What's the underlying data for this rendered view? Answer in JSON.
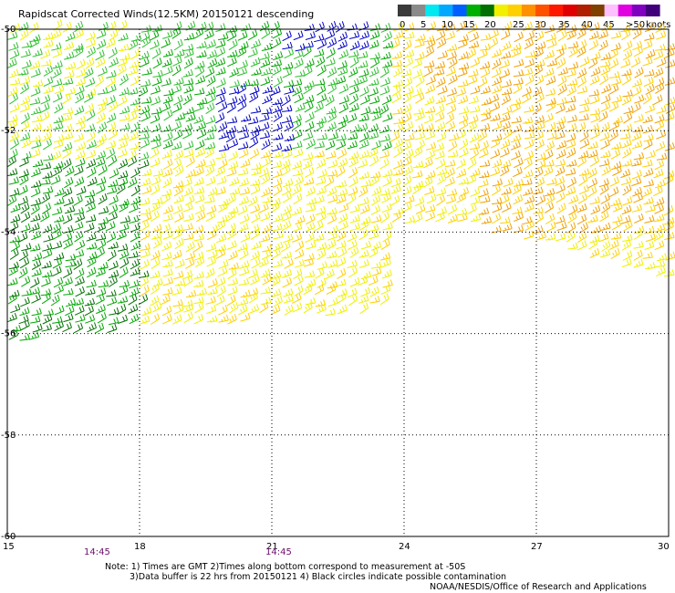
{
  "title": "Rapidscat Corrected Winds(12.5KM) 20150121 descending",
  "legend": {
    "units": "knots",
    "tick_labels": [
      "0",
      "5",
      "10",
      "15",
      "20",
      "25",
      "30",
      "35",
      "40",
      "45",
      ">50"
    ],
    "swatches": [
      "#3a3a3a",
      "#8a8a8a",
      "#00e8f0",
      "#00a8ff",
      "#0060ff",
      "#00b000",
      "#007000",
      "#f0f000",
      "#ffd000",
      "#ff9000",
      "#ff5000",
      "#ff1800",
      "#e00000",
      "#b02000",
      "#804000",
      "#ffc0ff",
      "#e000e0",
      "#8000c0",
      "#40007a"
    ]
  },
  "axes": {
    "lat_labels": [
      "-50",
      "-52",
      "-54",
      "-56",
      "-58",
      "-60"
    ],
    "lon_labels": [
      "15",
      "18",
      "21",
      "24",
      "27",
      "30"
    ],
    "lat_range": [
      -60,
      -50
    ],
    "lon_range": [
      15,
      30
    ]
  },
  "pass_times": [
    "14:45",
    "14:45"
  ],
  "notes": [
    "Note: 1) Times are GMT 2)Times along bottom correspond to measurement at -50S",
    "3)Data buffer is 22 hrs from 20150121 4) Black circles indicate possible contamination"
  ],
  "credit": "NOAA/NESDIS/Office of Research and Applications",
  "wind_colors": {
    "blue": "#0000c8",
    "green_dark": "#007000",
    "green": "#00a800",
    "green_light": "#2cc02c",
    "yellow": "#f0f000",
    "gold": "#ffd000",
    "orange": "#f0a000",
    "orange_dark": "#e07000"
  }
}
